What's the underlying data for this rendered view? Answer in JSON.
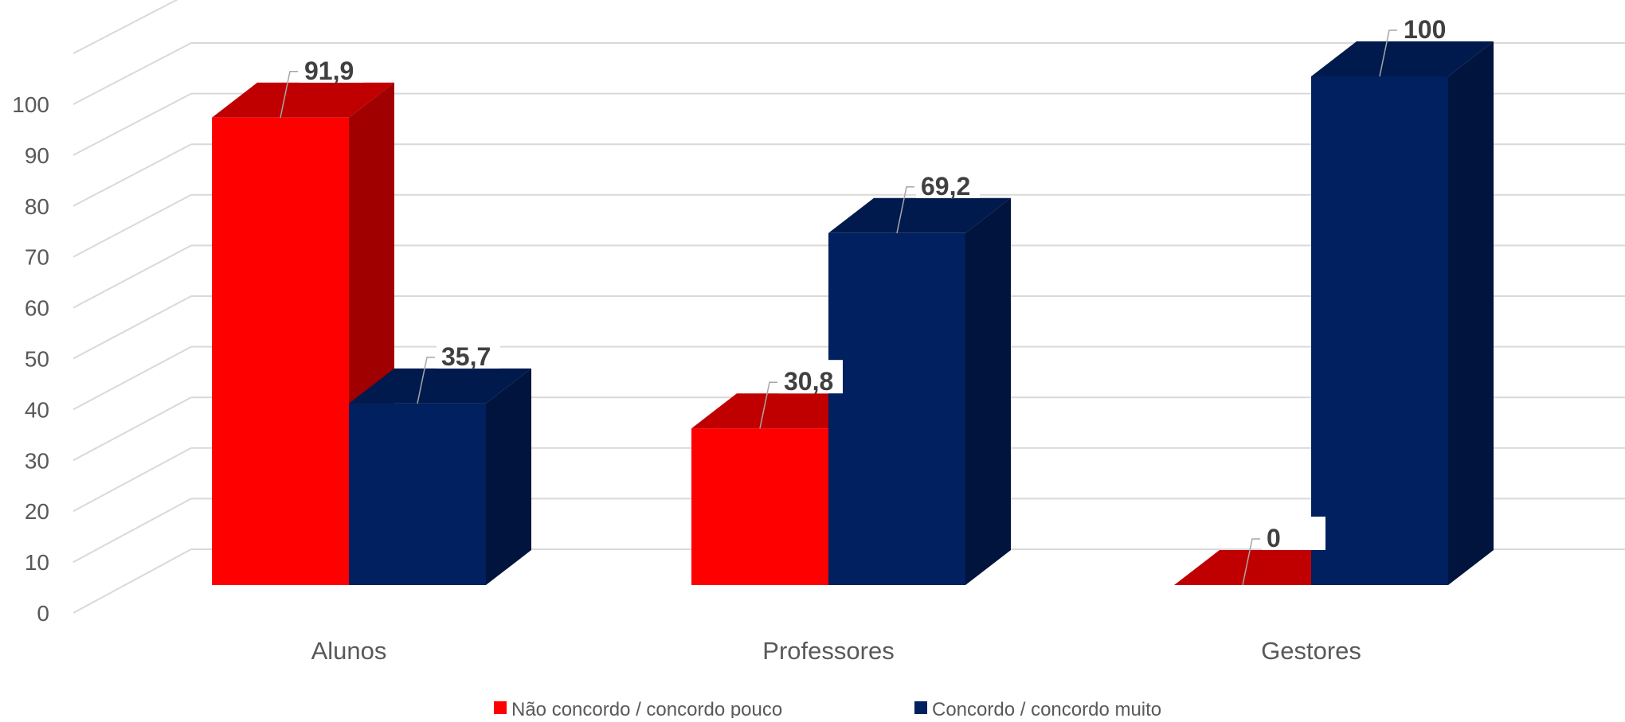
{
  "chart_data": {
    "type": "bar",
    "variant": "3d-clustered-column",
    "categories": [
      "Alunos",
      "Professores",
      "Gestores"
    ],
    "series": [
      {
        "name": "Não concordo / concordo pouco",
        "values": [
          91.9,
          30.8,
          0
        ],
        "labels": [
          "91,9",
          "30,8",
          "0"
        ],
        "color": "#ff0000",
        "side_color": "#a00000",
        "top_color": "#c00000"
      },
      {
        "name": "Concordo / concordo muito",
        "values": [
          35.7,
          69.2,
          100
        ],
        "labels": [
          "35,7",
          "69,2",
          "100"
        ],
        "color": "#00205f",
        "side_color": "#00143d",
        "top_color": "#001a4d"
      }
    ],
    "yticks": [
      "0",
      "10",
      "20",
      "30",
      "40",
      "50",
      "60",
      "70",
      "80",
      "90",
      "100"
    ],
    "ylim": [
      0,
      110
    ],
    "grid": true,
    "legend": "bottom",
    "title": "",
    "xlabel": "",
    "ylabel": ""
  }
}
